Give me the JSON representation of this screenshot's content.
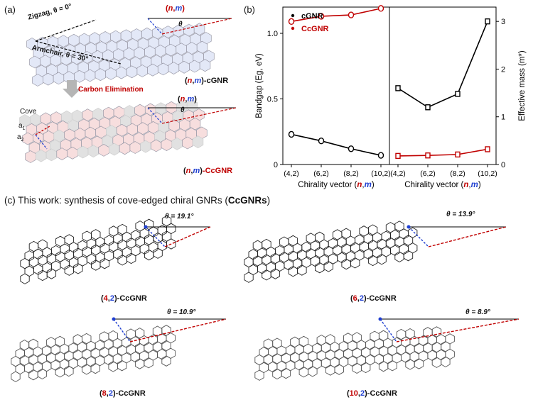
{
  "panels": {
    "a_label": "(a)",
    "b_label": "(b)",
    "c_label": "(c)"
  },
  "panel_a": {
    "zigzag": "Zigzag, θ = 0°",
    "armchair": "Armchair, θ = 30°",
    "nm_top": {
      "open": "(",
      "n": "n",
      "comma": ",",
      "m": "m",
      "close": ")"
    },
    "theta": "θ",
    "cgnr_label": {
      "open": "(",
      "n": "n",
      "comma": ",",
      "m": "m",
      "close": ")",
      "suffix": "-cGNR"
    },
    "carbon_elimination": "Carbon Elimination",
    "nm_mid": {
      "open": "(",
      "n": "n",
      "comma": ",",
      "m": "m",
      "close": ")"
    },
    "cove": "Cove",
    "a1": "a",
    "a1_sub": "1",
    "a2": "a",
    "a2_sub": "2",
    "ccgnr_label": {
      "open": "(",
      "n": "n",
      "comma": ",",
      "m": "m",
      "close": ")",
      "suffix": "-CcGNR"
    }
  },
  "panel_c": {
    "title_prefix": "This work: synthesis of cove-edged chiral GNRs (",
    "title_bold": "CcGNRs",
    "title_suffix": ")",
    "ribbons": [
      {
        "angle": "θ = 19.1°",
        "n": "4",
        "m": "2",
        "suffix": "-CcGNR"
      },
      {
        "angle": "θ = 13.9°",
        "n": "6",
        "m": "2",
        "suffix": "-CcGNR"
      },
      {
        "angle": "θ = 10.9°",
        "n": "8",
        "m": "2",
        "suffix": "-CcGNR"
      },
      {
        "angle": "θ = 8.9°",
        "n": "10",
        "m": "2",
        "suffix": "-CcGNR"
      }
    ]
  },
  "colors": {
    "red": "#c00000",
    "blue": "#1f3fd1",
    "cgnr_fill": "#e3e8f7",
    "ccgnr_fill": "#f7dede",
    "grey_fill": "#e1e1e1"
  },
  "chart_data": [
    {
      "type": "line",
      "title": "",
      "xlabel": "Chirality vector (n,m)",
      "ylabel": "Bandgap (Eg, eV)",
      "categories": [
        "(4,2)",
        "(6,2)",
        "(8,2)",
        "(10,2)"
      ],
      "ylim": [
        0,
        1.2
      ],
      "yticks": [
        "0",
        "0.5",
        "1.0"
      ],
      "legend": "top-left",
      "series": [
        {
          "name": "cGNR",
          "color": "#000000",
          "values": [
            0.23,
            0.18,
            0.12,
            0.07
          ]
        },
        {
          "name": "CcGNR",
          "color": "#c00000",
          "values": [
            1.09,
            1.13,
            1.14,
            1.19
          ]
        }
      ]
    },
    {
      "type": "line",
      "title": "",
      "xlabel": "Chirality vector (n,m)",
      "ylabel": "Effective mass (m*)",
      "categories": [
        "(4,2)",
        "(6,2)",
        "(8,2)",
        "(10,2)"
      ],
      "ylim": [
        0,
        3.3
      ],
      "yticks": [
        "0",
        "1",
        "2",
        "3"
      ],
      "series": [
        {
          "name": "cGNR",
          "color": "#000000",
          "values": [
            1.6,
            1.2,
            1.48,
            3.0
          ]
        },
        {
          "name": "CcGNR",
          "color": "#c00000",
          "values": [
            0.18,
            0.19,
            0.21,
            0.32
          ]
        }
      ]
    }
  ]
}
